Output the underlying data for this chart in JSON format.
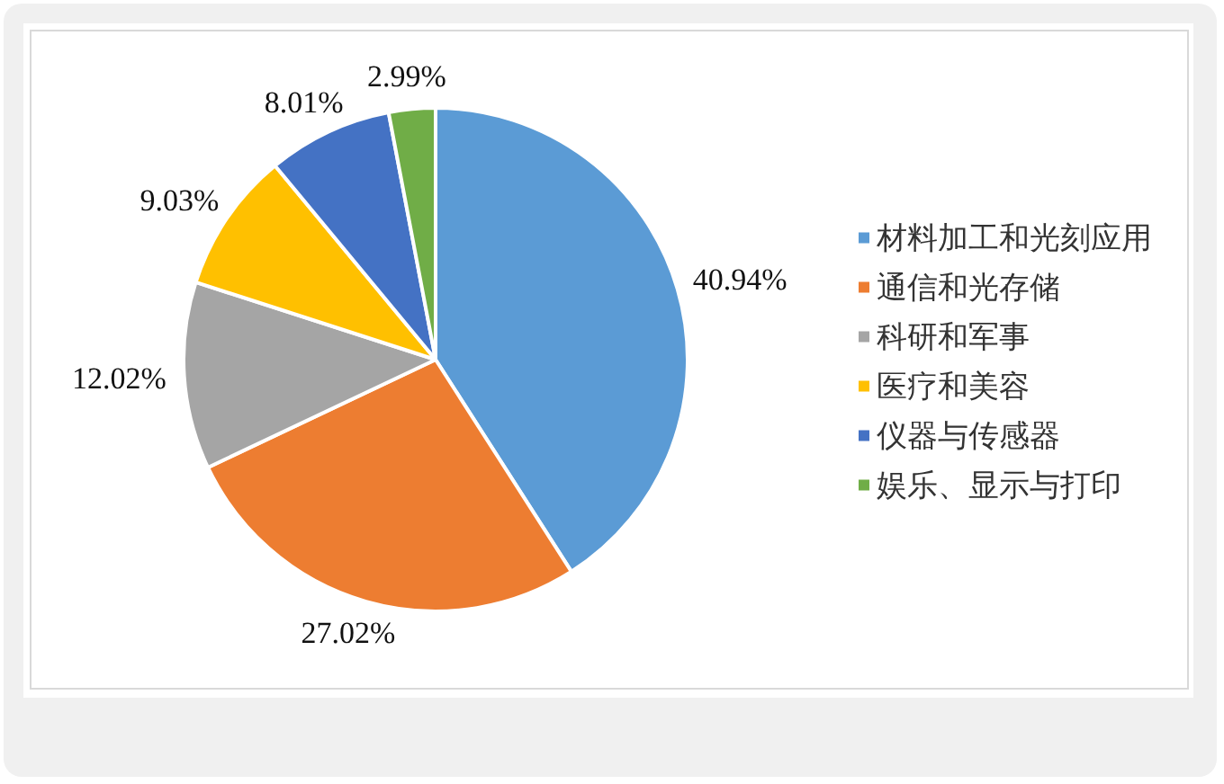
{
  "chart_data": {
    "type": "pie",
    "categories": [
      "材料加工和光刻应用",
      "通信和光存储",
      "科研和军事",
      "医疗和美容",
      "仪器与传感器",
      "娱乐、显示与打印"
    ],
    "values": [
      40.94,
      27.02,
      12.02,
      9.03,
      8.01,
      2.99
    ],
    "colors": [
      "#5b9bd5",
      "#ed7d31",
      "#a5a5a5",
      "#ffc000",
      "#4472c4",
      "#70ad47"
    ],
    "value_labels": [
      "40.94%",
      "27.02%",
      "12.02%",
      "9.03%",
      "8.01%",
      "2.99%"
    ],
    "legend": "right"
  }
}
